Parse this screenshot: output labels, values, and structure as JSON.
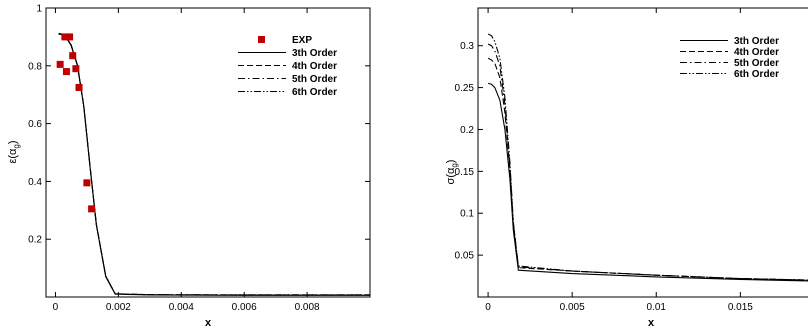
{
  "chart_data": [
    {
      "type": "line",
      "title": "",
      "xlabel": "x",
      "ylabel": "ε(α",
      "ylabel_subscript": "g",
      "ylabel_close": ")",
      "xlim": [
        -0.0003,
        0.01
      ],
      "ylim": [
        0,
        1
      ],
      "xticks": [
        0,
        0.002,
        0.004,
        0.006,
        0.008
      ],
      "xtick_labels": [
        "0",
        "0.002",
        "0.004",
        "0.006",
        "0.008"
      ],
      "yticks": [
        0.2,
        0.4,
        0.6,
        0.8,
        1
      ],
      "ytick_labels": [
        "0.2",
        "0.4",
        "0.6",
        "0.8",
        "1"
      ],
      "grid": false,
      "legend_position": "top-right",
      "legend": [
        "EXP",
        "3th Order",
        "4th Order",
        "5th Order",
        "6th Order"
      ],
      "scatter_series": {
        "name": "EXP",
        "color": "#c00000",
        "points": [
          [
            0.00015,
            0.805
          ],
          [
            0.0003,
            0.9
          ],
          [
            0.00045,
            0.9
          ],
          [
            0.00035,
            0.78
          ],
          [
            0.00055,
            0.835
          ],
          [
            0.00065,
            0.79
          ],
          [
            0.00075,
            0.725
          ],
          [
            0.001,
            0.395
          ],
          [
            0.00115,
            0.305
          ]
        ]
      },
      "series": [
        {
          "name": "3th Order",
          "dash": "solid",
          "points": [
            [
              0.0001,
              0.91
            ],
            [
              0.0003,
              0.905
            ],
            [
              0.0005,
              0.87
            ],
            [
              0.0007,
              0.8
            ],
            [
              0.0009,
              0.66
            ],
            [
              0.0011,
              0.45
            ],
            [
              0.0013,
              0.25
            ],
            [
              0.0016,
              0.07
            ],
            [
              0.0019,
              0.01
            ],
            [
              0.003,
              0.007
            ],
            [
              0.006,
              0.006
            ],
            [
              0.01,
              0.006
            ]
          ]
        },
        {
          "name": "4th Order",
          "dash": "dash",
          "points": [
            [
              0.0001,
              0.91
            ],
            [
              0.0003,
              0.906
            ],
            [
              0.0005,
              0.872
            ],
            [
              0.0007,
              0.802
            ],
            [
              0.0009,
              0.662
            ],
            [
              0.0011,
              0.452
            ],
            [
              0.0013,
              0.252
            ],
            [
              0.0016,
              0.072
            ],
            [
              0.0019,
              0.011
            ],
            [
              0.003,
              0.008
            ],
            [
              0.006,
              0.007
            ],
            [
              0.01,
              0.007
            ]
          ]
        },
        {
          "name": "5th Order",
          "dash": "dashdot",
          "points": [
            [
              0.0001,
              0.912
            ],
            [
              0.0003,
              0.906
            ],
            [
              0.0005,
              0.871
            ],
            [
              0.0007,
              0.801
            ],
            [
              0.0009,
              0.661
            ],
            [
              0.0011,
              0.451
            ],
            [
              0.0013,
              0.251
            ],
            [
              0.0016,
              0.071
            ],
            [
              0.0019,
              0.011
            ],
            [
              0.003,
              0.008
            ],
            [
              0.006,
              0.007
            ],
            [
              0.01,
              0.007
            ]
          ]
        },
        {
          "name": "6th Order",
          "dash": "dashdotdot",
          "points": [
            [
              0.0001,
              0.912
            ],
            [
              0.0003,
              0.907
            ],
            [
              0.0005,
              0.872
            ],
            [
              0.0007,
              0.802
            ],
            [
              0.0009,
              0.662
            ],
            [
              0.0011,
              0.452
            ],
            [
              0.0013,
              0.252
            ],
            [
              0.0016,
              0.072
            ],
            [
              0.0019,
              0.011
            ],
            [
              0.003,
              0.008
            ],
            [
              0.006,
              0.007
            ],
            [
              0.01,
              0.007
            ]
          ]
        }
      ]
    },
    {
      "type": "line",
      "title": "",
      "xlabel": "x",
      "ylabel": "σ(α",
      "ylabel_subscript": "g",
      "ylabel_close": ")",
      "xlim": [
        -0.0006,
        0.0195
      ],
      "ylim": [
        0,
        0.345
      ],
      "xticks": [
        0,
        0.005,
        0.01,
        0.015
      ],
      "xtick_labels": [
        "0",
        "0.005",
        "0.01",
        "0.015"
      ],
      "yticks": [
        0.05,
        0.1,
        0.15,
        0.2,
        0.25,
        0.3
      ],
      "ytick_labels": [
        "0.05",
        "0.1",
        "0.15",
        "0.2",
        "0.25",
        "0.3"
      ],
      "grid": false,
      "legend_position": "top-right",
      "legend": [
        "3th Order",
        "4th Order",
        "5th Order",
        "6th Order"
      ],
      "series": [
        {
          "name": "3th Order",
          "dash": "solid",
          "points": [
            [
              0,
              0.255
            ],
            [
              0.0002,
              0.254
            ],
            [
              0.0004,
              0.25
            ],
            [
              0.0007,
              0.235
            ],
            [
              0.001,
              0.2
            ],
            [
              0.0013,
              0.14
            ],
            [
              0.0015,
              0.08
            ],
            [
              0.0018,
              0.032
            ],
            [
              0.005,
              0.028
            ],
            [
              0.01,
              0.024
            ],
            [
              0.015,
              0.021
            ],
            [
              0.0195,
              0.019
            ]
          ]
        },
        {
          "name": "4th Order",
          "dash": "dash",
          "points": [
            [
              0,
              0.285
            ],
            [
              0.0002,
              0.283
            ],
            [
              0.0004,
              0.279
            ],
            [
              0.0007,
              0.262
            ],
            [
              0.001,
              0.22
            ],
            [
              0.0013,
              0.15
            ],
            [
              0.0015,
              0.085
            ],
            [
              0.0018,
              0.035
            ],
            [
              0.005,
              0.031
            ],
            [
              0.01,
              0.026
            ],
            [
              0.015,
              0.022
            ],
            [
              0.0195,
              0.02
            ]
          ]
        },
        {
          "name": "5th Order",
          "dash": "dashdot",
          "points": [
            [
              0,
              0.302
            ],
            [
              0.0002,
              0.3
            ],
            [
              0.0004,
              0.294
            ],
            [
              0.0007,
              0.276
            ],
            [
              0.001,
              0.23
            ],
            [
              0.0013,
              0.155
            ],
            [
              0.0015,
              0.088
            ],
            [
              0.0018,
              0.036
            ],
            [
              0.005,
              0.031
            ],
            [
              0.01,
              0.026
            ],
            [
              0.015,
              0.022
            ],
            [
              0.0195,
              0.02
            ]
          ]
        },
        {
          "name": "6th Order",
          "dash": "dashdotdot",
          "points": [
            [
              0,
              0.314
            ],
            [
              0.0002,
              0.312
            ],
            [
              0.0004,
              0.305
            ],
            [
              0.0007,
              0.285
            ],
            [
              0.001,
              0.238
            ],
            [
              0.0013,
              0.16
            ],
            [
              0.0015,
              0.09
            ],
            [
              0.0018,
              0.037
            ],
            [
              0.005,
              0.031
            ],
            [
              0.01,
              0.026
            ],
            [
              0.015,
              0.022
            ],
            [
              0.0195,
              0.02
            ]
          ]
        }
      ]
    }
  ]
}
